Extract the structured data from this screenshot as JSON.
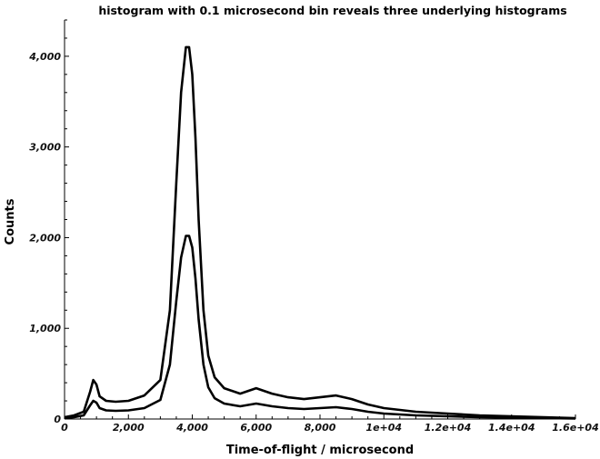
{
  "chart_data": {
    "type": "line",
    "title": "histogram with 0.1 microsecond bin reveals three underlying histograms",
    "xlabel": "Time-of-flight / microsecond",
    "ylabel": "Counts",
    "xlim": [
      0,
      16000
    ],
    "ylim": [
      0,
      4400
    ],
    "x_ticks": [
      0,
      2000,
      4000,
      6000,
      8000,
      10000,
      12000,
      14000,
      16000
    ],
    "x_tick_labels": [
      "0",
      "2,000",
      "4,000",
      "6,000",
      "8,000",
      "1e+04",
      "1.2e+04",
      "1.4e+04",
      "1.6e+04"
    ],
    "y_ticks": [
      0,
      1000,
      2000,
      3000,
      4000
    ],
    "y_tick_labels": [
      "0",
      "1,000",
      "2,000",
      "3,000",
      "4,000"
    ],
    "grid": false,
    "legend": "none",
    "series": [
      {
        "x": [
          0,
          300,
          600,
          800,
          900,
          1000,
          1100,
          1300,
          1600,
          2000,
          2500,
          3000,
          3300,
          3500,
          3650,
          3800,
          3900,
          4000,
          4100,
          4200,
          4350,
          4500,
          4700,
          5000,
          5500,
          6000,
          6500,
          7000,
          7500,
          8000,
          8500,
          9000,
          9500,
          10000,
          11000,
          12000,
          13000,
          14000,
          15000,
          16000
        ],
        "values": [
          10,
          20,
          40,
          150,
          200,
          180,
          120,
          95,
          90,
          95,
          120,
          210,
          600,
          1300,
          1780,
          2020,
          2020,
          1890,
          1550,
          1100,
          600,
          350,
          230,
          170,
          140,
          170,
          140,
          120,
          110,
          120,
          130,
          110,
          80,
          60,
          40,
          30,
          20,
          15,
          10,
          5
        ]
      },
      {
        "x": [
          0,
          300,
          600,
          800,
          900,
          1000,
          1100,
          1300,
          1600,
          2000,
          2500,
          3000,
          3300,
          3500,
          3650,
          3800,
          3900,
          4000,
          4100,
          4200,
          4350,
          4500,
          4700,
          5000,
          5500,
          6000,
          6500,
          7000,
          7500,
          8000,
          8500,
          9000,
          9500,
          10000,
          11000,
          12000,
          13000,
          14000,
          15000,
          16000
        ],
        "values": [
          20,
          40,
          80,
          300,
          430,
          380,
          250,
          200,
          190,
          200,
          260,
          430,
          1200,
          2600,
          3600,
          4100,
          4100,
          3800,
          3100,
          2200,
          1200,
          700,
          460,
          340,
          280,
          340,
          280,
          240,
          220,
          240,
          260,
          220,
          160,
          120,
          80,
          60,
          40,
          30,
          20,
          10
        ]
      }
    ]
  }
}
